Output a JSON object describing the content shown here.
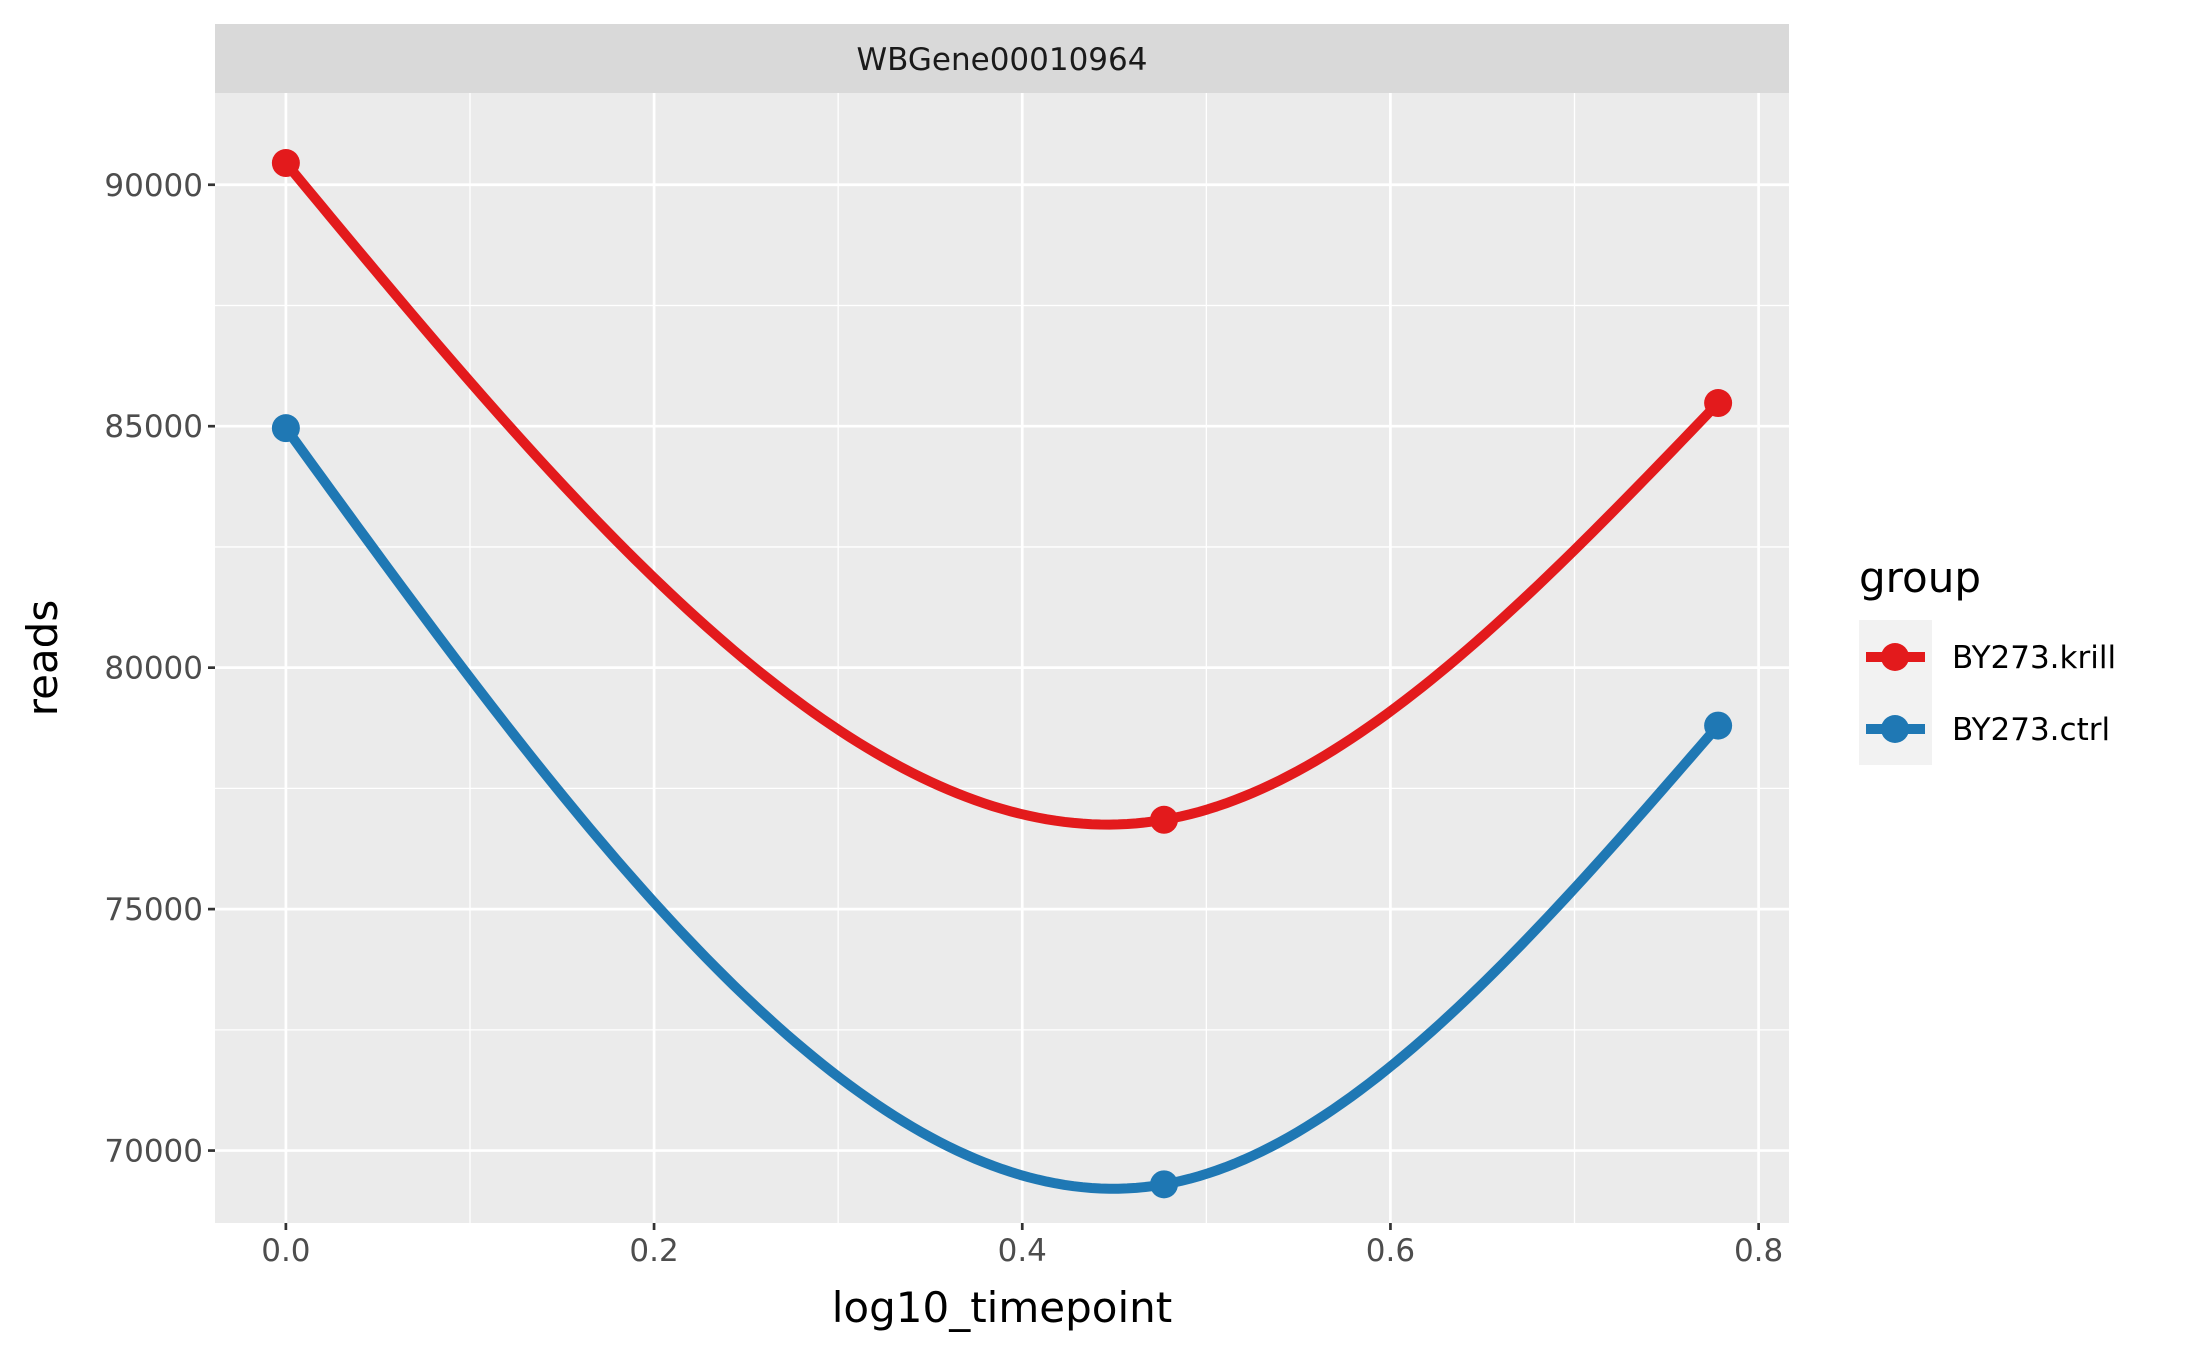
{
  "chart_data": {
    "type": "line",
    "facet_title": "WBGene00010964",
    "xlabel": "log10_timepoint",
    "ylabel": "reads",
    "xlim": [
      -0.0385,
      0.8165
    ],
    "ylim": [
      68500,
      91900
    ],
    "x_ticks": [
      0.0,
      0.2,
      0.4,
      0.6,
      0.8
    ],
    "x_tick_labels": [
      "0.0",
      "0.2",
      "0.4",
      "0.6",
      "0.8"
    ],
    "y_ticks": [
      70000,
      75000,
      80000,
      85000,
      90000
    ],
    "y_tick_labels": [
      "70000",
      "75000",
      "80000",
      "85000",
      "90000"
    ],
    "grid": true,
    "legend": {
      "title": "group",
      "position": "right"
    },
    "x": [
      0.0,
      0.477,
      0.778
    ],
    "series": [
      {
        "name": "BY273.krill",
        "color": "#e31a1c",
        "values": [
          90450,
          76850,
          85480
        ]
      },
      {
        "name": "BY273.ctrl",
        "color": "#1f78b4",
        "values": [
          84960,
          69300,
          78800
        ]
      }
    ]
  }
}
